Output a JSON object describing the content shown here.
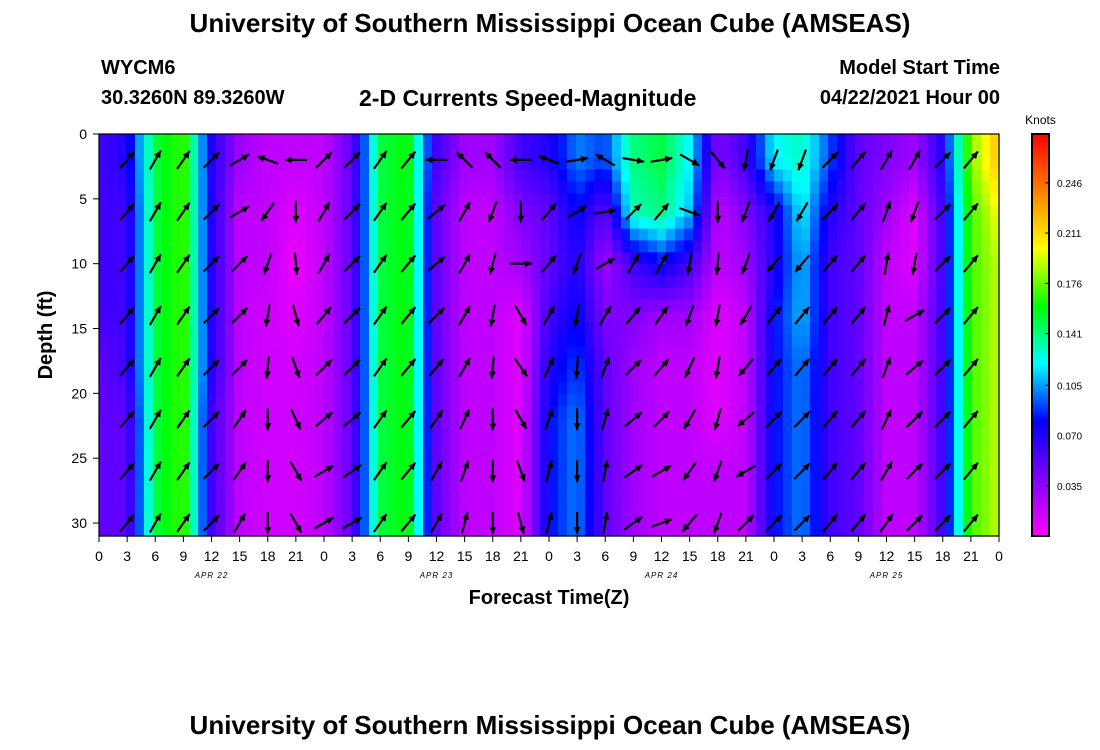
{
  "header": {
    "title": "University of Southern Mississippi Ocean Cube (AMSEAS)",
    "station_id": "WYCM6",
    "station_coords": "30.3260N  89.3260W",
    "subtitle": "2-D Currents Speed-Magnitude",
    "model_start_label": "Model Start Time",
    "model_start_value": "04/22/2021 Hour 00"
  },
  "footer": {
    "title": "University of Southern Mississippi Ocean Cube (AMSEAS)"
  },
  "chart_data": {
    "type": "heatmap",
    "xlabel": "Forecast Time(Z)",
    "ylabel": "Depth (ft)",
    "x_tick_labels": [
      "0",
      "3",
      "6",
      "9",
      "12",
      "15",
      "18",
      "21",
      "0",
      "3",
      "6",
      "9",
      "12",
      "15",
      "18",
      "21",
      "0",
      "3",
      "6",
      "9",
      "12",
      "15",
      "18",
      "21",
      "0",
      "3",
      "6",
      "9",
      "12",
      "15",
      "18",
      "21",
      "0"
    ],
    "date_labels": [
      "APR 22",
      "APR 23",
      "APR 24",
      "APR 25"
    ],
    "xlim_hours": [
      0,
      96
    ],
    "y_tick_labels": [
      "0",
      "5",
      "10",
      "15",
      "20",
      "25",
      "30"
    ],
    "ylim": [
      0,
      31
    ],
    "y_inverted": true,
    "colorbar": {
      "unit": "Knots",
      "tick_labels": [
        "0.246",
        "0.211",
        "0.176",
        "0.141",
        "0.105",
        "0.070",
        "0.035"
      ],
      "range": [
        0,
        0.28
      ],
      "colors": [
        "#ff00ff",
        "#8000ff",
        "#0000ff",
        "#00ffff",
        "#00ff00",
        "#ffff00",
        "#ff8000",
        "#ff0000"
      ]
    },
    "arrow_depths_ft": [
      2,
      6,
      10,
      14,
      18,
      22,
      26,
      30
    ],
    "time_series": [
      {
        "hour": 0,
        "speeds": [
          0.06,
          0.06,
          0.06,
          0.06,
          0.05,
          0.05,
          0.05,
          0.05
        ],
        "dirs": [
          45,
          45,
          45,
          45,
          45,
          45,
          45,
          45
        ]
      },
      {
        "hour": 3,
        "speeds": [
          0.07,
          0.06,
          0.06,
          0.06,
          0.06,
          0.05,
          0.05,
          0.05
        ],
        "dirs": [
          40,
          40,
          40,
          40,
          40,
          40,
          40,
          40
        ]
      },
      {
        "hour": 6,
        "speeds": [
          0.15,
          0.15,
          0.15,
          0.15,
          0.15,
          0.15,
          0.15,
          0.15
        ],
        "dirs": [
          30,
          30,
          30,
          30,
          30,
          30,
          30,
          30
        ]
      },
      {
        "hour": 9,
        "speeds": [
          0.17,
          0.17,
          0.17,
          0.17,
          0.17,
          0.17,
          0.17,
          0.17
        ],
        "dirs": [
          35,
          35,
          35,
          35,
          35,
          35,
          35,
          35
        ]
      },
      {
        "hour": 12,
        "speeds": [
          0.07,
          0.07,
          0.07,
          0.07,
          0.07,
          0.06,
          0.06,
          0.06
        ],
        "dirs": [
          45,
          45,
          45,
          45,
          45,
          45,
          45,
          45
        ]
      },
      {
        "hour": 15,
        "speeds": [
          0.03,
          0.02,
          0.02,
          0.02,
          0.02,
          0.02,
          0.02,
          0.02
        ],
        "dirs": [
          60,
          60,
          45,
          45,
          45,
          35,
          35,
          30
        ]
      },
      {
        "hour": 18,
        "speeds": [
          0.02,
          0.02,
          0.02,
          0.015,
          0.015,
          0.015,
          0.015,
          0.015
        ],
        "dirs": [
          290,
          215,
          200,
          190,
          185,
          180,
          180,
          180
        ]
      },
      {
        "hour": 21,
        "speeds": [
          0.02,
          0.01,
          0.005,
          0.01,
          0.015,
          0.015,
          0.015,
          0.015
        ],
        "dirs": [
          270,
          180,
          175,
          165,
          160,
          155,
          150,
          150
        ]
      },
      {
        "hour": 24,
        "speeds": [
          0.02,
          0.02,
          0.02,
          0.02,
          0.02,
          0.02,
          0.02,
          0.02
        ],
        "dirs": [
          45,
          30,
          30,
          40,
          45,
          50,
          60,
          60
        ]
      },
      {
        "hour": 27,
        "speeds": [
          0.05,
          0.05,
          0.05,
          0.05,
          0.05,
          0.05,
          0.05,
          0.05
        ],
        "dirs": [
          45,
          45,
          45,
          45,
          45,
          50,
          55,
          60
        ]
      },
      {
        "hour": 30,
        "speeds": [
          0.15,
          0.15,
          0.15,
          0.15,
          0.15,
          0.15,
          0.15,
          0.15
        ],
        "dirs": [
          35,
          35,
          35,
          35,
          35,
          35,
          35,
          35
        ]
      },
      {
        "hour": 33,
        "speeds": [
          0.16,
          0.16,
          0.16,
          0.16,
          0.16,
          0.16,
          0.16,
          0.16
        ],
        "dirs": [
          40,
          40,
          40,
          40,
          40,
          40,
          40,
          40
        ]
      },
      {
        "hour": 36,
        "speeds": [
          0.06,
          0.05,
          0.05,
          0.05,
          0.05,
          0.05,
          0.05,
          0.05
        ],
        "dirs": [
          270,
          50,
          50,
          45,
          40,
          35,
          30,
          30
        ]
      },
      {
        "hour": 39,
        "speeds": [
          0.03,
          0.02,
          0.02,
          0.02,
          0.02,
          0.02,
          0.02,
          0.02
        ],
        "dirs": [
          315,
          30,
          30,
          30,
          30,
          25,
          20,
          15
        ]
      },
      {
        "hour": 42,
        "speeds": [
          0.03,
          0.02,
          0.02,
          0.02,
          0.02,
          0.02,
          0.02,
          0.02
        ],
        "dirs": [
          315,
          200,
          195,
          190,
          185,
          180,
          180,
          180
        ]
      },
      {
        "hour": 45,
        "speeds": [
          0.06,
          0.04,
          0.03,
          0.01,
          0.01,
          0.01,
          0.01,
          0.01
        ],
        "dirs": [
          270,
          180,
          90,
          150,
          145,
          150,
          160,
          165
        ]
      },
      {
        "hour": 48,
        "speeds": [
          0.07,
          0.05,
          0.05,
          0.06,
          0.07,
          0.08,
          0.08,
          0.08
        ],
        "dirs": [
          290,
          40,
          40,
          30,
          25,
          20,
          15,
          15
        ]
      },
      {
        "hour": 51,
        "speeds": [
          0.1,
          0.08,
          0.07,
          0.08,
          0.09,
          0.1,
          0.1,
          0.1
        ],
        "dirs": [
          80,
          60,
          200,
          190,
          185,
          180,
          180,
          180
        ]
      },
      {
        "hour": 54,
        "speeds": [
          0.09,
          0.05,
          0.03,
          0.04,
          0.05,
          0.05,
          0.05,
          0.05
        ],
        "dirs": [
          300,
          80,
          60,
          30,
          20,
          15,
          10,
          10
        ]
      },
      {
        "hour": 57,
        "speeds": [
          0.14,
          0.13,
          0.06,
          0.04,
          0.03,
          0.03,
          0.03,
          0.03
        ],
        "dirs": [
          100,
          45,
          30,
          40,
          45,
          50,
          55,
          55
        ]
      },
      {
        "hour": 60,
        "speeds": [
          0.15,
          0.14,
          0.08,
          0.03,
          0.02,
          0.02,
          0.02,
          0.02
        ],
        "dirs": [
          80,
          40,
          30,
          35,
          40,
          45,
          60,
          70
        ]
      },
      {
        "hour": 63,
        "speeds": [
          0.12,
          0.11,
          0.06,
          0.03,
          0.02,
          0.02,
          0.02,
          0.02
        ],
        "dirs": [
          120,
          110,
          190,
          200,
          205,
          210,
          215,
          220
        ]
      },
      {
        "hour": 66,
        "speeds": [
          0.04,
          0.02,
          0.02,
          0.01,
          0.01,
          0.01,
          0.02,
          0.02
        ],
        "dirs": [
          140,
          180,
          185,
          190,
          190,
          195,
          200,
          200
        ]
      },
      {
        "hour": 69,
        "speeds": [
          0.06,
          0.04,
          0.03,
          0.02,
          0.02,
          0.02,
          0.02,
          0.02
        ],
        "dirs": [
          190,
          200,
          200,
          210,
          220,
          230,
          240,
          45
        ]
      },
      {
        "hour": 72,
        "speeds": [
          0.12,
          0.07,
          0.07,
          0.08,
          0.08,
          0.08,
          0.08,
          0.08
        ],
        "dirs": [
          200,
          210,
          220,
          40,
          40,
          45,
          45,
          45
        ]
      },
      {
        "hour": 75,
        "speeds": [
          0.13,
          0.12,
          0.11,
          0.11,
          0.1,
          0.1,
          0.1,
          0.1
        ],
        "dirs": [
          200,
          210,
          220,
          40,
          40,
          45,
          45,
          45
        ]
      },
      {
        "hour": 78,
        "speeds": [
          0.09,
          0.07,
          0.06,
          0.06,
          0.06,
          0.06,
          0.06,
          0.06
        ],
        "dirs": [
          45,
          45,
          40,
          40,
          40,
          40,
          40,
          40
        ]
      },
      {
        "hour": 81,
        "speeds": [
          0.05,
          0.05,
          0.05,
          0.05,
          0.05,
          0.05,
          0.05,
          0.05
        ],
        "dirs": [
          40,
          40,
          40,
          40,
          40,
          40,
          40,
          40
        ]
      },
      {
        "hour": 84,
        "speeds": [
          0.04,
          0.03,
          0.02,
          0.02,
          0.02,
          0.02,
          0.02,
          0.02
        ],
        "dirs": [
          30,
          20,
          10,
          15,
          20,
          25,
          30,
          35
        ]
      },
      {
        "hour": 87,
        "speeds": [
          0.03,
          0.01,
          0.01,
          0.02,
          0.02,
          0.02,
          0.02,
          0.02
        ],
        "dirs": [
          30,
          200,
          190,
          60,
          50,
          45,
          45,
          45
        ]
      },
      {
        "hour": 90,
        "speeds": [
          0.07,
          0.06,
          0.06,
          0.06,
          0.06,
          0.06,
          0.06,
          0.06
        ],
        "dirs": [
          45,
          45,
          45,
          45,
          45,
          45,
          45,
          45
        ]
      },
      {
        "hour": 93,
        "speeds": [
          0.18,
          0.17,
          0.17,
          0.17,
          0.17,
          0.17,
          0.17,
          0.17
        ],
        "dirs": [
          40,
          40,
          40,
          40,
          40,
          40,
          40,
          40
        ]
      },
      {
        "hour": 96,
        "speeds": [
          0.22,
          0.2,
          0.19,
          0.19,
          0.19,
          0.19,
          0.19,
          0.19
        ],
        "dirs": [
          40,
          40,
          40,
          40,
          40,
          40,
          40,
          40
        ]
      }
    ]
  }
}
